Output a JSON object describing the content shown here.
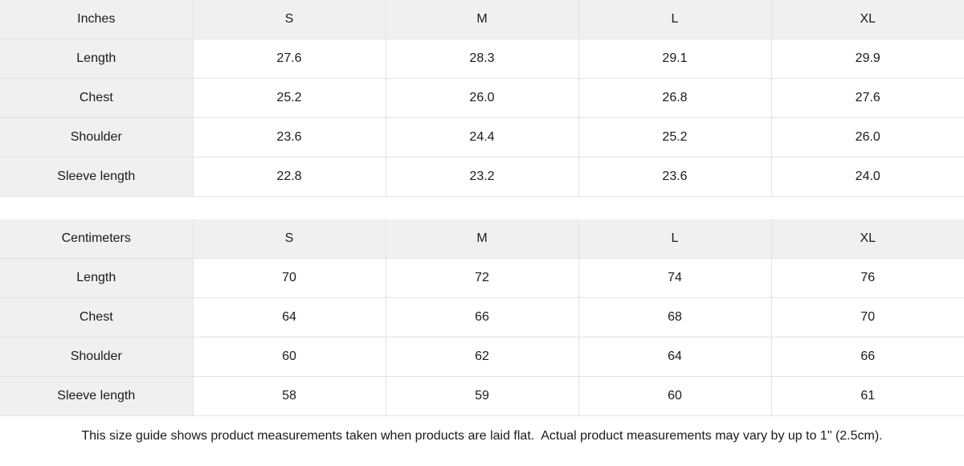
{
  "colors": {
    "background": "#ffffff",
    "header_and_label_bg": "#f0f0f0",
    "border": "#e2e2e2",
    "text": "#1a1a1a"
  },
  "tables": [
    {
      "unit": "Inches",
      "header": [
        "Inches",
        "S",
        "M",
        "L",
        "XL"
      ],
      "rows": [
        {
          "label": "Length",
          "values": [
            "27.6",
            "28.3",
            "29.1",
            "29.9"
          ]
        },
        {
          "label": "Chest",
          "values": [
            "25.2",
            "26.0",
            "26.8",
            "27.6"
          ]
        },
        {
          "label": "Shoulder",
          "values": [
            "23.6",
            "24.4",
            "25.2",
            "26.0"
          ]
        },
        {
          "label": "Sleeve length",
          "values": [
            "22.8",
            "23.2",
            "23.6",
            "24.0"
          ]
        }
      ]
    },
    {
      "unit": "Centimeters",
      "header": [
        "Centimeters",
        "S",
        "M",
        "L",
        "XL"
      ],
      "rows": [
        {
          "label": "Length",
          "values": [
            "70",
            "72",
            "74",
            "76"
          ]
        },
        {
          "label": "Chest",
          "values": [
            "64",
            "66",
            "68",
            "70"
          ]
        },
        {
          "label": "Shoulder",
          "values": [
            "60",
            "62",
            "64",
            "66"
          ]
        },
        {
          "label": "Sleeve length",
          "values": [
            "58",
            "59",
            "60",
            "61"
          ]
        }
      ]
    }
  ],
  "footer": {
    "note": "This size guide shows product measurements taken when products are laid flat.  Actual product measurements may vary by up to 1\" (2.5cm)."
  }
}
